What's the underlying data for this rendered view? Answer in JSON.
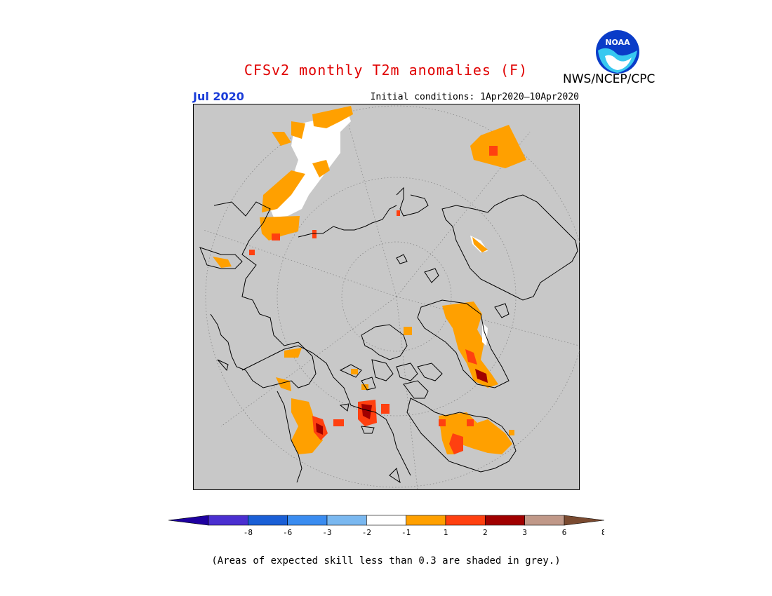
{
  "header": {
    "title": "CFSv2 monthly T2m anomalies (F)",
    "month": "Jul 2020",
    "initial_conditions": "Initial conditions: 1Apr2020–10Apr2020",
    "agency": "NWS/NCEP/CPC",
    "logo_text": "NOAA"
  },
  "colorbar": {
    "colors": [
      "#1e00a0",
      "#4a2fd0",
      "#1a5fd6",
      "#3a8cf0",
      "#7ab8f0",
      "#ffffff",
      "#ffa000",
      "#ff4010",
      "#a00000",
      "#c09888",
      "#7a4a30"
    ],
    "tick_labels": [
      "-8",
      "-6",
      "-3",
      "-2",
      "-1",
      "1",
      "2",
      "3",
      "6",
      "8"
    ]
  },
  "footnote": "(Areas of expected skill less than 0.3 are shaded in grey.)",
  "map_colors": {
    "background": "#c8c8c8",
    "coast": "#000000",
    "grid": "#888888",
    "white": "#ffffff",
    "orange": "#ffa000",
    "red": "#ff4010",
    "darkred": "#a00000"
  }
}
